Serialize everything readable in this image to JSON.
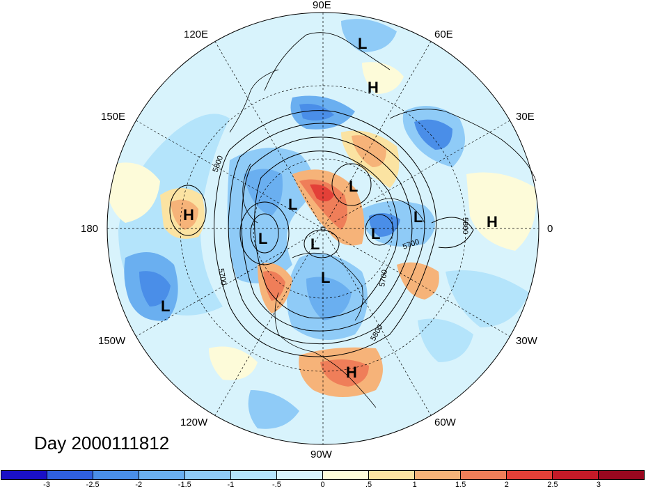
{
  "title": "Day 2000111812",
  "longitude_labels": {
    "lon_90e": "90E",
    "lon_60e": "60E",
    "lon_30e": "30E",
    "lon_0": "0",
    "lon_30w": "30W",
    "lon_60w": "60W",
    "lon_90w": "90W",
    "lon_120w": "120W",
    "lon_150w": "150W",
    "lon_180": "180",
    "lon_150e": "150E",
    "lon_120e": "120E"
  },
  "contour_labels": [
    "5800",
    "5700",
    "5800",
    "5700",
    "5700",
    "5800"
  ],
  "pressure_systems": [
    "L",
    "H",
    "L",
    "L",
    "L",
    "L",
    "L",
    "L",
    "L",
    "L",
    "H",
    "H",
    "L",
    "H"
  ],
  "colorbar": {
    "ticks": [
      "-3",
      "-2.5",
      "-2",
      "-1.5",
      "-1",
      "-.5",
      "0",
      ".5",
      "1",
      "1.5",
      "2",
      "2.5",
      "3"
    ],
    "colors": [
      "#1a10c8",
      "#2f5fe0",
      "#4a8ee8",
      "#6aaff0",
      "#8fcbf7",
      "#b4e4fb",
      "#d8f3fc",
      "#fdfbd9",
      "#fbe3a2",
      "#f6b379",
      "#ef7e59",
      "#e34038",
      "#c41a28",
      "#99071f"
    ]
  }
}
